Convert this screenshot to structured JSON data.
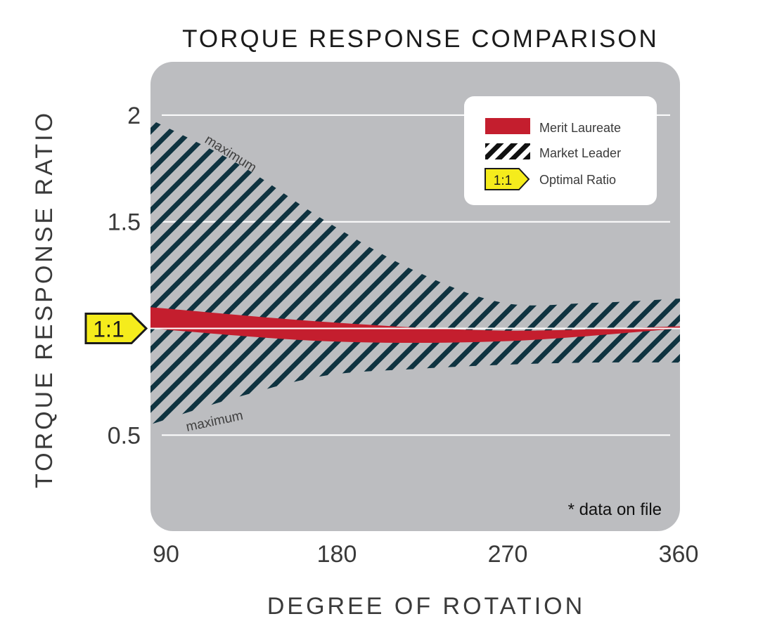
{
  "chart_data": {
    "type": "area",
    "title": "TORQUE RESPONSE COMPARISON",
    "xlabel": "DEGREE OF ROTATION",
    "ylabel": "TORQUE RESPONSE RATIO",
    "x_ticks": [
      "90",
      "180",
      "270",
      "360"
    ],
    "y_ticks": [
      {
        "value": 2,
        "label": "2"
      },
      {
        "value": 1.5,
        "label": "1.5"
      },
      {
        "value": 0.5,
        "label": "0.5"
      }
    ],
    "xlim": [
      90,
      360
    ],
    "ylim": [
      0.05,
      2.25
    ],
    "grid": true,
    "legend_position": "top-right",
    "reference_line": {
      "value": 1,
      "label": "1:1"
    },
    "series": [
      {
        "name": "Merit Laureate",
        "style": "solid-band",
        "color": "#c41e2e",
        "x": [
          90,
          180,
          270,
          360
        ],
        "upper": [
          1.1,
          1.03,
          0.99,
          1.01
        ],
        "lower": [
          1.0,
          0.94,
          0.94,
          1.0
        ]
      },
      {
        "name": "Market Leader",
        "style": "hatched-band",
        "color": "#0f3340",
        "x": [
          90,
          135,
          180,
          225,
          270,
          315,
          360
        ],
        "upper": [
          1.98,
          1.77,
          1.5,
          1.27,
          1.12,
          1.12,
          1.14
        ],
        "lower": [
          0.55,
          0.68,
          0.78,
          0.81,
          0.83,
          0.84,
          0.84
        ],
        "upper_label": "maximum",
        "lower_label": "maximum"
      }
    ],
    "legend": [
      {
        "label": "Merit Laureate",
        "symbol": "solid"
      },
      {
        "label": "Market Leader",
        "symbol": "hatch"
      },
      {
        "label": "Optimal Ratio",
        "symbol": "tag",
        "tag_text": "1:1"
      }
    ],
    "annotation": "* data on file",
    "colors": {
      "plot_background": "#bcbdc0",
      "gridline": "#ffffff",
      "tag_fill": "#f5ec1c",
      "legend_background": "#ffffff"
    }
  }
}
